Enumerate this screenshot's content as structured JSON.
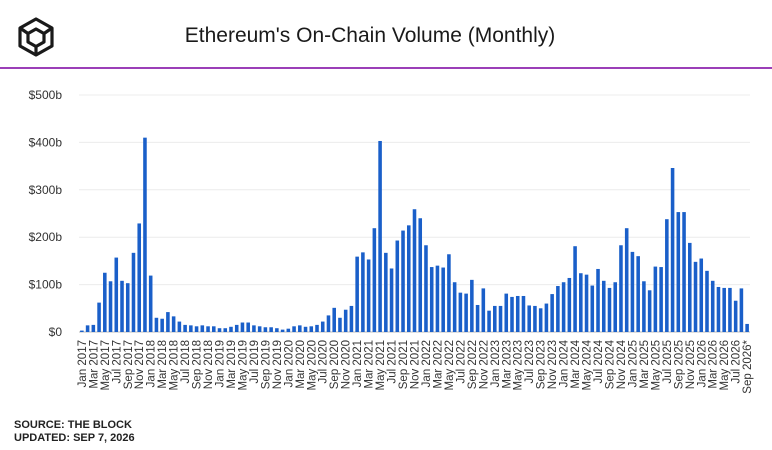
{
  "header": {
    "logo_icon": "the-block-cube-logo",
    "title": "Ethereum's On-Chain Volume (Monthly)"
  },
  "footer": {
    "source": "SOURCE: THE BLOCK",
    "updated": "UPDATED: SEP 7, 2026"
  },
  "colors": {
    "bar": "#1a5fc9",
    "divider": "#9b3fb8"
  },
  "chart_data": {
    "type": "bar",
    "title": "Ethereum's On-Chain Volume (Monthly)",
    "xlabel": "",
    "ylabel": "",
    "ylim": [
      0,
      500
    ],
    "y_ticks": [
      {
        "value": 0,
        "label": "$0"
      },
      {
        "value": 100,
        "label": "$100b"
      },
      {
        "value": 200,
        "label": "$200b"
      },
      {
        "value": 300,
        "label": "$300b"
      },
      {
        "value": 400,
        "label": "$400b"
      },
      {
        "value": 500,
        "label": "$500b"
      }
    ],
    "grid": true,
    "categories": [
      "Jan 2017",
      "Feb 2017",
      "Mar 2017",
      "Apr 2017",
      "May 2017",
      "Jun 2017",
      "Jul 2017",
      "Aug 2017",
      "Sep 2017",
      "Oct 2017",
      "Nov 2017",
      "Dec 2017",
      "Jan 2018",
      "Feb 2018",
      "Mar 2018",
      "Apr 2018",
      "May 2018",
      "Jun 2018",
      "Jul 2018",
      "Aug 2018",
      "Sep 2018",
      "Oct 2018",
      "Nov 2018",
      "Dec 2018",
      "Jan 2019",
      "Feb 2019",
      "Mar 2019",
      "Apr 2019",
      "May 2019",
      "Jun 2019",
      "Jul 2019",
      "Aug 2019",
      "Sep 2019",
      "Oct 2019",
      "Nov 2019",
      "Dec 2019",
      "Jan 2020",
      "Feb 2020",
      "Mar 2020",
      "Apr 2020",
      "May 2020",
      "Jun 2020",
      "Jul 2020",
      "Aug 2020",
      "Sep 2020",
      "Oct 2020",
      "Nov 2020",
      "Dec 2020",
      "Jan 2021",
      "Feb 2021",
      "Mar 2021",
      "Apr 2021",
      "May 2021",
      "Jun 2021",
      "Jul 2021",
      "Aug 2021",
      "Sep 2021",
      "Oct 2021",
      "Nov 2021",
      "Dec 2021",
      "Jan 2022",
      "Feb 2022",
      "Mar 2022",
      "Apr 2022",
      "May 2022",
      "Jun 2022",
      "Jul 2022",
      "Aug 2022",
      "Sep 2022",
      "Oct 2022",
      "Nov 2022",
      "Dec 2022",
      "Jan 2023",
      "Feb 2023",
      "Mar 2023",
      "Apr 2023",
      "May 2023",
      "Jun 2023",
      "Jul 2023",
      "Aug 2023",
      "Sep 2023",
      "Oct 2023",
      "Nov 2023",
      "Dec 2023",
      "Jan 2024",
      "Feb 2024",
      "Mar 2024",
      "Apr 2024",
      "May 2024",
      "Jun 2024",
      "Jul 2024",
      "Aug 2024",
      "Sep 2024",
      "Oct 2024",
      "Nov 2024",
      "Dec 2024",
      "Jan 2025",
      "Feb 2025",
      "Mar 2025",
      "Apr 2025",
      "May 2025",
      "Jun 2025",
      "Jul 2025",
      "Aug 2025",
      "Sep 2025",
      "Oct 2025",
      "Nov 2025",
      "Dec 2025",
      "Jan 2026",
      "Feb 2026",
      "Mar 2026",
      "Apr 2026",
      "May 2026",
      "Jun 2026",
      "Jul 2026",
      "Aug 2026",
      "Sep 2026*"
    ],
    "x_tick_labels": [
      "Jan 2017",
      "Mar 2017",
      "May 2017",
      "Jul 2017",
      "Sep 2017",
      "Nov 2017",
      "Jan 2018",
      "Mar 2018",
      "May 2018",
      "Jul 2018",
      "Sep 2018",
      "Nov 2018",
      "Jan 2019",
      "Mar 2019",
      "May 2019",
      "Jul 2019",
      "Sep 2019",
      "Nov 2019",
      "Jan 2020",
      "Mar 2020",
      "May 2020",
      "Jul 2020",
      "Sep 2020",
      "Nov 2020",
      "Jan 2021",
      "Mar 2021",
      "May 2021",
      "Jul 2021",
      "Sep 2021",
      "Nov 2021",
      "Jan 2022",
      "Mar 2022",
      "May 2022",
      "Jul 2022",
      "Sep 2022",
      "Nov 2022",
      "Jan 2023",
      "Mar 2023",
      "May 2023",
      "Jul 2023",
      "Sep 2023",
      "Nov 2023",
      "Jan 2024",
      "Mar 2024",
      "May 2024",
      "Jul 2024",
      "Sep 2024",
      "Nov 2024",
      "Jan 2025",
      "Mar 2025",
      "May 2025",
      "Jul 2025",
      "Sep 2025",
      "Nov 2025",
      "Jan 2026",
      "Mar 2026",
      "May 2026",
      "Jul 2026",
      "Sep 2026*"
    ],
    "series": [
      {
        "values": [
          3,
          14,
          15,
          62,
          125,
          107,
          157,
          108,
          103,
          167,
          229,
          410,
          119,
          30,
          28,
          42,
          33,
          22,
          15,
          14,
          12,
          14,
          12,
          12,
          8,
          8,
          11,
          15,
          20,
          20,
          14,
          12,
          10,
          10,
          8,
          5,
          7,
          12,
          14,
          11,
          12,
          15,
          22,
          35,
          51,
          30,
          47,
          55,
          159,
          168,
          153,
          219,
          403,
          167,
          134,
          193,
          214,
          225,
          259,
          240,
          183,
          137,
          140,
          136,
          164,
          105,
          83,
          81,
          110,
          57,
          92,
          45,
          55,
          55,
          81,
          74,
          76,
          76,
          56,
          55,
          50,
          60,
          80,
          97,
          105,
          114,
          181,
          124,
          121,
          98,
          133,
          108,
          93,
          105,
          183,
          219,
          169,
          160,
          107,
          88,
          138,
          137,
          238,
          346,
          253,
          253,
          188,
          148,
          155,
          129,
          108,
          95,
          93,
          93,
          66,
          92,
          17
        ]
      }
    ]
  }
}
